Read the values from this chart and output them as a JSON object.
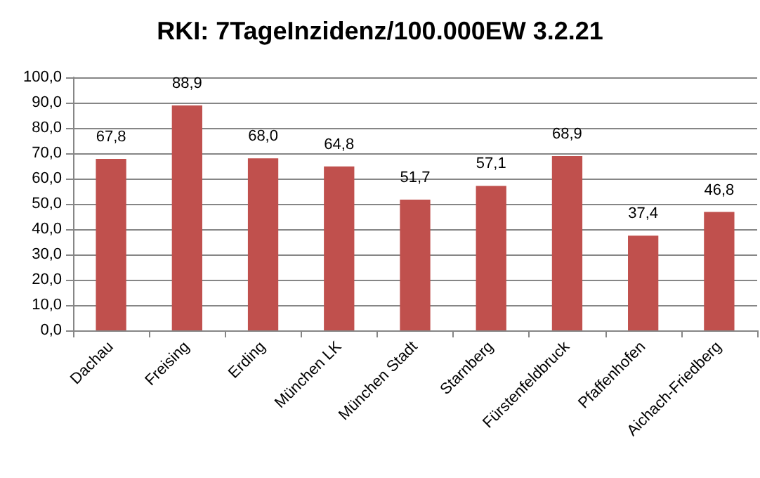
{
  "chart_data": {
    "type": "bar",
    "title": "RKI: 7TageInzidenz/100.000EW 3.2.21",
    "categories": [
      "Dachau",
      "Freising",
      "Erding",
      "München LK",
      "München Stadt",
      "Starnberg",
      "Fürstenfeldbruck",
      "Pfaffenhofen",
      "Aichach-Friedberg"
    ],
    "values": [
      67.8,
      88.9,
      68.0,
      64.8,
      51.7,
      57.1,
      68.9,
      37.4,
      46.8
    ],
    "value_labels": [
      "67,8",
      "88,9",
      "68,0",
      "64,8",
      "51,7",
      "57,1",
      "68,9",
      "37,4",
      "46,8"
    ],
    "color": "#c0504d",
    "ylim": [
      0,
      100
    ],
    "yticks": [
      {
        "value": 0,
        "label": "0,0"
      },
      {
        "value": 10,
        "label": "10,0"
      },
      {
        "value": 20,
        "label": "20,0"
      },
      {
        "value": 30,
        "label": "30,0"
      },
      {
        "value": 40,
        "label": "40,0"
      },
      {
        "value": 50,
        "label": "50,0"
      },
      {
        "value": 60,
        "label": "60,0"
      },
      {
        "value": 70,
        "label": "70,0"
      },
      {
        "value": 80,
        "label": "80,0"
      },
      {
        "value": 90,
        "label": "90,0"
      },
      {
        "value": 100,
        "label": "100,0"
      }
    ],
    "grid": "y"
  }
}
